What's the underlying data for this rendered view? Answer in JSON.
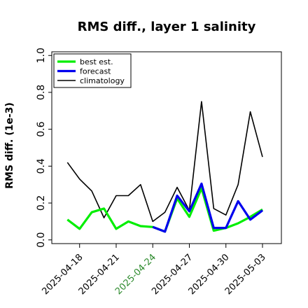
{
  "chart_data": {
    "type": "line",
    "title": "RMS diff., layer 1 salinity",
    "xlabel": "",
    "ylabel": "RMS diff. (1e-3)",
    "ylim": [
      -0.02,
      1.02
    ],
    "xlim": [
      "2025-04-15",
      "2025-05-04"
    ],
    "grid": false,
    "legend_position": "top-left",
    "yticks": [
      "0.0",
      "0.2",
      "0.4",
      "0.6",
      "0.8",
      "1.0"
    ],
    "xticks": [
      {
        "date": "2025-04-18",
        "label": "2025-04-18",
        "color": "#000000"
      },
      {
        "date": "2025-04-21",
        "label": "2025-04-21",
        "color": "#000000"
      },
      {
        "date": "2025-04-24",
        "label": "2025-04-24",
        "color": "#2e8b2e"
      },
      {
        "date": "2025-04-27",
        "label": "2025-04-27",
        "color": "#000000"
      },
      {
        "date": "2025-04-30",
        "label": "2025-04-30",
        "color": "#000000"
      },
      {
        "date": "2025-05-03",
        "label": "2025-05-03",
        "color": "#000000"
      }
    ],
    "series": [
      {
        "name": "climatology",
        "color": "#000000",
        "width": 1.6,
        "points": [
          [
            "2025-04-17",
            0.42
          ],
          [
            "2025-04-18",
            0.33
          ],
          [
            "2025-04-19",
            0.265
          ],
          [
            "2025-04-20",
            0.12
          ],
          [
            "2025-04-21",
            0.24
          ],
          [
            "2025-04-22",
            0.24
          ],
          [
            "2025-04-23",
            0.3
          ],
          [
            "2025-04-24",
            0.1
          ],
          [
            "2025-04-25",
            0.15
          ],
          [
            "2025-04-26",
            0.285
          ],
          [
            "2025-04-27",
            0.16
          ],
          [
            "2025-04-28",
            0.75
          ],
          [
            "2025-04-29",
            0.17
          ],
          [
            "2025-04-30",
            0.135
          ],
          [
            "2025-05-01",
            0.3
          ],
          [
            "2025-05-02",
            0.695
          ],
          [
            "2025-05-03",
            0.45
          ]
        ]
      },
      {
        "name": "best est.",
        "color": "#00ee00",
        "width": 3.2,
        "points": [
          [
            "2025-04-17",
            0.11
          ],
          [
            "2025-04-18",
            0.06
          ],
          [
            "2025-04-19",
            0.15
          ],
          [
            "2025-04-20",
            0.17
          ],
          [
            "2025-04-21",
            0.06
          ],
          [
            "2025-04-22",
            0.1
          ],
          [
            "2025-04-23",
            0.075
          ],
          [
            "2025-04-24",
            0.07
          ],
          [
            "2025-04-25",
            0.045
          ],
          [
            "2025-04-26",
            0.225
          ],
          [
            "2025-04-27",
            0.125
          ],
          [
            "2025-04-28",
            0.28
          ],
          [
            "2025-04-29",
            0.05
          ],
          [
            "2025-04-30",
            0.065
          ],
          [
            "2025-05-01",
            0.09
          ],
          [
            "2025-05-02",
            0.125
          ],
          [
            "2025-05-03",
            0.165
          ]
        ]
      },
      {
        "name": "forecast",
        "color": "#0000ee",
        "width": 3.2,
        "points": [
          [
            "2025-04-24",
            0.07
          ],
          [
            "2025-04-25",
            0.045
          ],
          [
            "2025-04-26",
            0.24
          ],
          [
            "2025-04-27",
            0.155
          ],
          [
            "2025-04-28",
            0.305
          ],
          [
            "2025-04-29",
            0.065
          ],
          [
            "2025-04-30",
            0.065
          ],
          [
            "2025-05-01",
            0.21
          ],
          [
            "2025-05-02",
            0.11
          ],
          [
            "2025-05-03",
            0.16
          ]
        ]
      }
    ],
    "legend": [
      "best est.",
      "forecast",
      "climatology"
    ]
  }
}
